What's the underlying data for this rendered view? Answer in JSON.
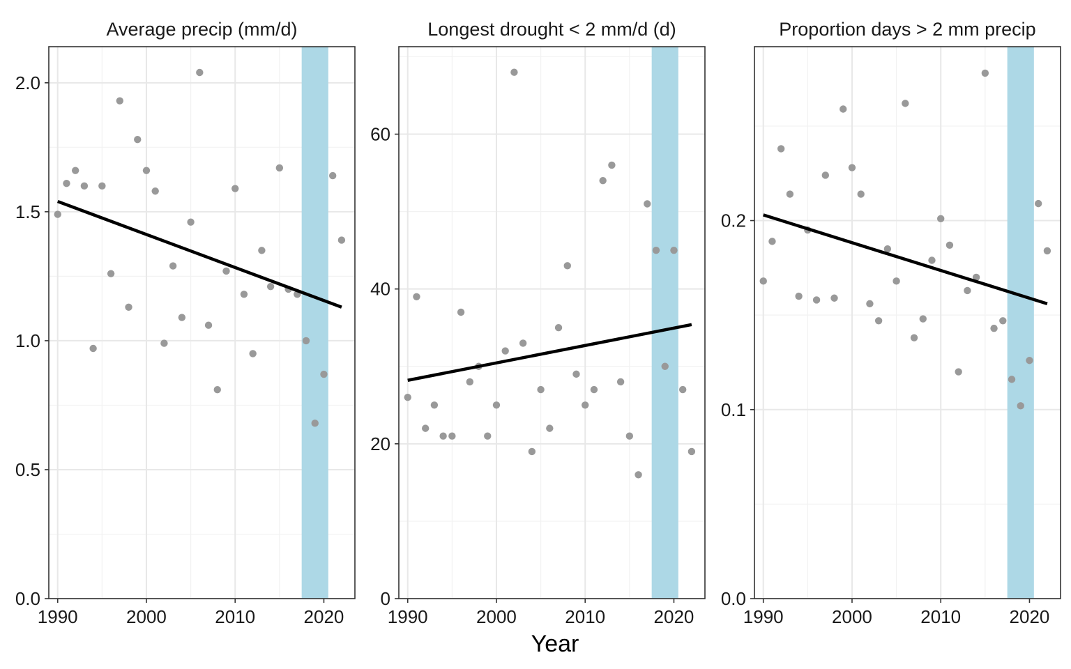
{
  "xlabel": "Year",
  "colors": {
    "point": "#999999",
    "trend": "#000000",
    "highlight": "#add8e6",
    "grid": "#ebebeb"
  },
  "chart_data": [
    {
      "type": "scatter",
      "title": "Average precip (mm/d)",
      "xlim": [
        1989,
        2023.5
      ],
      "ylim": [
        0,
        2.14
      ],
      "xticks": [
        1990,
        2000,
        2010,
        2020
      ],
      "yticks": [
        0,
        0.5,
        1,
        1.5,
        2
      ],
      "ytick_labels": [
        "0.0",
        "0.5",
        "1.0",
        "1.5",
        "2.0"
      ],
      "highlight_band": [
        2017.5,
        2020.5
      ],
      "trend": {
        "x": [
          1990,
          2022
        ],
        "y": [
          1.54,
          1.13
        ]
      },
      "x": [
        1990,
        1991,
        1992,
        1993,
        1994,
        1995,
        1996,
        1997,
        1998,
        1999,
        2000,
        2001,
        2002,
        2003,
        2004,
        2005,
        2006,
        2007,
        2008,
        2009,
        2010,
        2011,
        2012,
        2013,
        2014,
        2015,
        2016,
        2017,
        2018,
        2019,
        2020,
        2021,
        2022
      ],
      "y": [
        1.49,
        1.61,
        1.66,
        1.6,
        0.97,
        1.6,
        1.26,
        1.93,
        1.13,
        1.78,
        1.66,
        1.58,
        0.99,
        1.29,
        1.09,
        1.46,
        2.04,
        1.06,
        0.81,
        1.27,
        1.59,
        1.18,
        0.95,
        1.35,
        1.21,
        1.67,
        1.2,
        1.18,
        1.0,
        0.68,
        0.87,
        1.64,
        1.39
      ]
    },
    {
      "type": "scatter",
      "title": "Longest drought < 2 mm/d (d)",
      "xlim": [
        1989,
        2023.5
      ],
      "ylim": [
        0,
        71.3
      ],
      "xticks": [
        1990,
        2000,
        2010,
        2020
      ],
      "yticks": [
        0,
        20,
        40,
        60
      ],
      "ytick_labels": [
        "0",
        "20",
        "40",
        "60"
      ],
      "highlight_band": [
        2017.5,
        2020.5
      ],
      "trend": {
        "x": [
          1990,
          2022
        ],
        "y": [
          28.2,
          35.4
        ]
      },
      "x": [
        1990,
        1991,
        1992,
        1993,
        1994,
        1995,
        1996,
        1997,
        1998,
        1999,
        2000,
        2001,
        2002,
        2003,
        2004,
        2005,
        2006,
        2007,
        2008,
        2009,
        2010,
        2011,
        2012,
        2013,
        2014,
        2015,
        2016,
        2017,
        2018,
        2019,
        2020,
        2021,
        2022
      ],
      "y": [
        26,
        39,
        22,
        25,
        21,
        21,
        37,
        28,
        30,
        21,
        25,
        32,
        68,
        33,
        19,
        27,
        22,
        35,
        43,
        29,
        25,
        27,
        54,
        56,
        28,
        21,
        16,
        51,
        45,
        30,
        45,
        27,
        19
      ]
    },
    {
      "type": "scatter",
      "title": "Proportion days > 2 mm precip",
      "xlim": [
        1989,
        2023.5
      ],
      "ylim": [
        0,
        0.292
      ],
      "xticks": [
        1990,
        2000,
        2010,
        2020
      ],
      "yticks": [
        0,
        0.1,
        0.2
      ],
      "ytick_labels": [
        "0.0",
        "0.1",
        "0.2"
      ],
      "highlight_band": [
        2017.5,
        2020.5
      ],
      "trend": {
        "x": [
          1990,
          2022
        ],
        "y": [
          0.203,
          0.156
        ]
      },
      "x": [
        1990,
        1991,
        1992,
        1993,
        1994,
        1995,
        1996,
        1997,
        1998,
        1999,
        2000,
        2001,
        2002,
        2003,
        2004,
        2005,
        2006,
        2007,
        2008,
        2009,
        2010,
        2011,
        2012,
        2013,
        2014,
        2015,
        2016,
        2017,
        2018,
        2019,
        2020,
        2021,
        2022
      ],
      "y": [
        0.168,
        0.189,
        0.238,
        0.214,
        0.16,
        0.195,
        0.158,
        0.224,
        0.159,
        0.259,
        0.228,
        0.214,
        0.156,
        0.147,
        0.185,
        0.168,
        0.262,
        0.138,
        0.148,
        0.179,
        0.201,
        0.187,
        0.12,
        0.163,
        0.17,
        0.278,
        0.143,
        0.147,
        0.116,
        0.102,
        0.126,
        0.209,
        0.184
      ]
    }
  ]
}
